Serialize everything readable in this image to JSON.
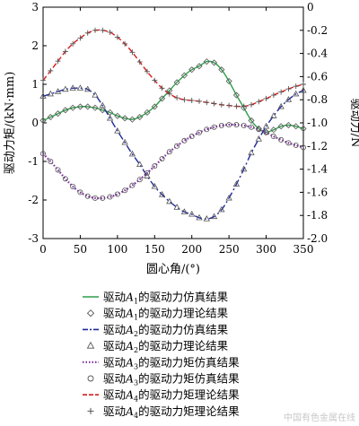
{
  "chart_data": {
    "type": "line",
    "xlabel": "圆心角/(°)",
    "ylabel_left": "驱动力矩/(kN·mm)",
    "ylabel_right": "驱动力/N",
    "xlim": [
      0,
      350
    ],
    "ylim_left": [
      -3,
      3
    ],
    "ylim_right": [
      -2.0,
      0.0
    ],
    "x_ticks": [
      0,
      50,
      100,
      150,
      200,
      250,
      300,
      350
    ],
    "y_left_ticks": [
      -3,
      -2,
      -1,
      0,
      1,
      2,
      3
    ],
    "y_right_ticks": [
      -2.0,
      -1.8,
      -1.6,
      -1.4,
      -1.2,
      -1.0,
      -0.8,
      -0.6,
      -0.4,
      -0.2,
      0
    ],
    "y_right_tick_labels": [
      "-2.0",
      "-1.8",
      "-1.6",
      "-1.4",
      "-1.2",
      "-1.0",
      "-0.8",
      "-0.6",
      "-0.4",
      "-0.2",
      "0"
    ],
    "grid": false,
    "legend_position": "bottom",
    "x": [
      0,
      10,
      20,
      30,
      40,
      50,
      60,
      70,
      80,
      90,
      100,
      110,
      120,
      130,
      140,
      150,
      160,
      170,
      180,
      190,
      200,
      210,
      220,
      230,
      240,
      250,
      260,
      270,
      280,
      290,
      300,
      310,
      320,
      330,
      340,
      350
    ],
    "series": [
      {
        "axis": "right",
        "color": "#2e9e4a",
        "style": "solid",
        "values": [
          -0.98,
          -0.95,
          -0.92,
          -0.89,
          -0.87,
          -0.86,
          -0.86,
          -0.87,
          -0.89,
          -0.91,
          -0.94,
          -0.96,
          -0.97,
          -0.95,
          -0.91,
          -0.86,
          -0.79,
          -0.72,
          -0.65,
          -0.59,
          -0.54,
          -0.51,
          -0.47,
          -0.48,
          -0.54,
          -0.64,
          -0.76,
          -0.87,
          -0.98,
          -1.05,
          -1.08,
          -1.06,
          -1.03,
          -1.02,
          -1.03,
          -1.05
        ]
      },
      {
        "axis": "right",
        "color": "#1f2a9c",
        "style": "dashdot",
        "values": [
          -0.77,
          -0.75,
          -0.73,
          -0.71,
          -0.7,
          -0.7,
          -0.71,
          -0.76,
          -0.85,
          -0.96,
          -1.07,
          -1.17,
          -1.27,
          -1.36,
          -1.46,
          -1.55,
          -1.62,
          -1.68,
          -1.73,
          -1.77,
          -1.79,
          -1.82,
          -1.83,
          -1.81,
          -1.75,
          -1.65,
          -1.53,
          -1.4,
          -1.26,
          -1.14,
          -1.03,
          -0.94,
          -0.86,
          -0.8,
          -0.75,
          -0.72
        ]
      },
      {
        "axis": "left",
        "color": "#7b2d9e",
        "style": "dotted",
        "values": [
          -0.8,
          -1.0,
          -1.22,
          -1.45,
          -1.65,
          -1.8,
          -1.9,
          -1.95,
          -1.95,
          -1.92,
          -1.85,
          -1.75,
          -1.62,
          -1.47,
          -1.3,
          -1.12,
          -0.93,
          -0.75,
          -0.6,
          -0.46,
          -0.35,
          -0.25,
          -0.17,
          -0.11,
          -0.07,
          -0.05,
          -0.05,
          -0.07,
          -0.11,
          -0.17,
          -0.25,
          -0.35,
          -0.44,
          -0.52,
          -0.58,
          -0.64
        ]
      },
      {
        "axis": "left",
        "color": "#d11f1f",
        "style": "dashed",
        "values": [
          1.1,
          1.35,
          1.6,
          1.85,
          2.05,
          2.2,
          2.33,
          2.4,
          2.4,
          2.35,
          2.22,
          2.05,
          1.83,
          1.58,
          1.33,
          1.1,
          0.9,
          0.75,
          0.65,
          0.6,
          0.58,
          0.56,
          0.53,
          0.5,
          0.47,
          0.45,
          0.43,
          0.43,
          0.47,
          0.55,
          0.63,
          0.72,
          0.8,
          0.88,
          0.95,
          1.0
        ]
      }
    ],
    "legend": [
      {
        "pre": "驱动",
        "sym": "A",
        "sub": "1",
        "post": "的驱动力仿真结果",
        "marker": "line",
        "color": "#2e9e4a",
        "style": "solid"
      },
      {
        "pre": "驱动",
        "sym": "A",
        "sub": "1",
        "post": "的驱动力理论结果",
        "marker": "diamond",
        "color": "#555555",
        "style": "none"
      },
      {
        "pre": "驱动",
        "sym": "A",
        "sub": "2",
        "post": "的驱动力仿真结果",
        "marker": "line",
        "color": "#1f2a9c",
        "style": "dashdot"
      },
      {
        "pre": "驱动",
        "sym": "A",
        "sub": "2",
        "post": "的驱动力理论结果",
        "marker": "triangle",
        "color": "#555555",
        "style": "none"
      },
      {
        "pre": "驱动",
        "sym": "A",
        "sub": "3",
        "post": "的驱动力矩仿真结果",
        "marker": "line",
        "color": "#7b2d9e",
        "style": "dotted"
      },
      {
        "pre": "驱动",
        "sym": "A",
        "sub": "3",
        "post": "的驱动力矩仿真结果",
        "marker": "circle",
        "color": "#555555",
        "style": "none"
      },
      {
        "pre": "驱动",
        "sym": "A",
        "sub": "4",
        "post": "的驱动力矩理论结果",
        "marker": "line",
        "color": "#d11f1f",
        "style": "dashed"
      },
      {
        "pre": "驱动",
        "sym": "A",
        "sub": "4",
        "post": "的驱动力矩理论结果",
        "marker": "plus",
        "color": "#555555",
        "style": "none"
      }
    ]
  },
  "watermark": "中国有色金属在线"
}
